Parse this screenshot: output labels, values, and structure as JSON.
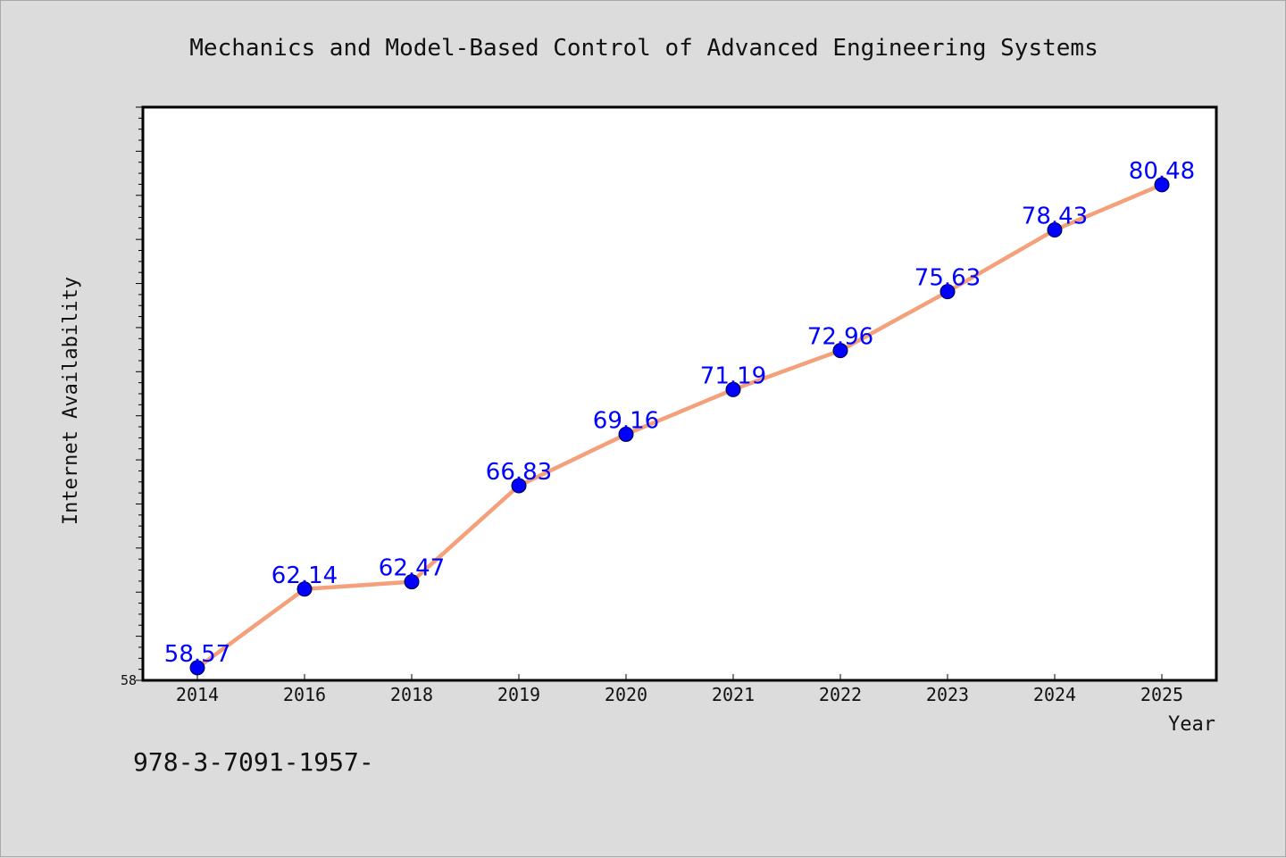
{
  "chart_data": {
    "type": "line",
    "title": "Mechanics and Model-Based Control of Advanced Engineering Systems",
    "xlabel": "Year",
    "ylabel": "Internet Availability",
    "categories": [
      "2014",
      "2016",
      "2018",
      "2019",
      "2020",
      "2021",
      "2022",
      "2023",
      "2024",
      "2025"
    ],
    "series": [
      {
        "values": [
          58.57,
          62.14,
          62.47,
          66.83,
          69.16,
          71.19,
          72.96,
          75.63,
          78.43,
          80.48
        ],
        "labels": [
          "58.57",
          "62.14",
          "62.47",
          "66.83",
          "69.16",
          "71.19",
          "72.96",
          "75.63",
          "78.43",
          "80.48"
        ],
        "color": "#f4a07a",
        "marker_color": "#0000ff"
      }
    ],
    "ylim": [
      58,
      84
    ],
    "yticks": [
      "58"
    ],
    "grid": false,
    "legend": "none"
  },
  "footer": {
    "text": "978-3-7091-1957-"
  }
}
